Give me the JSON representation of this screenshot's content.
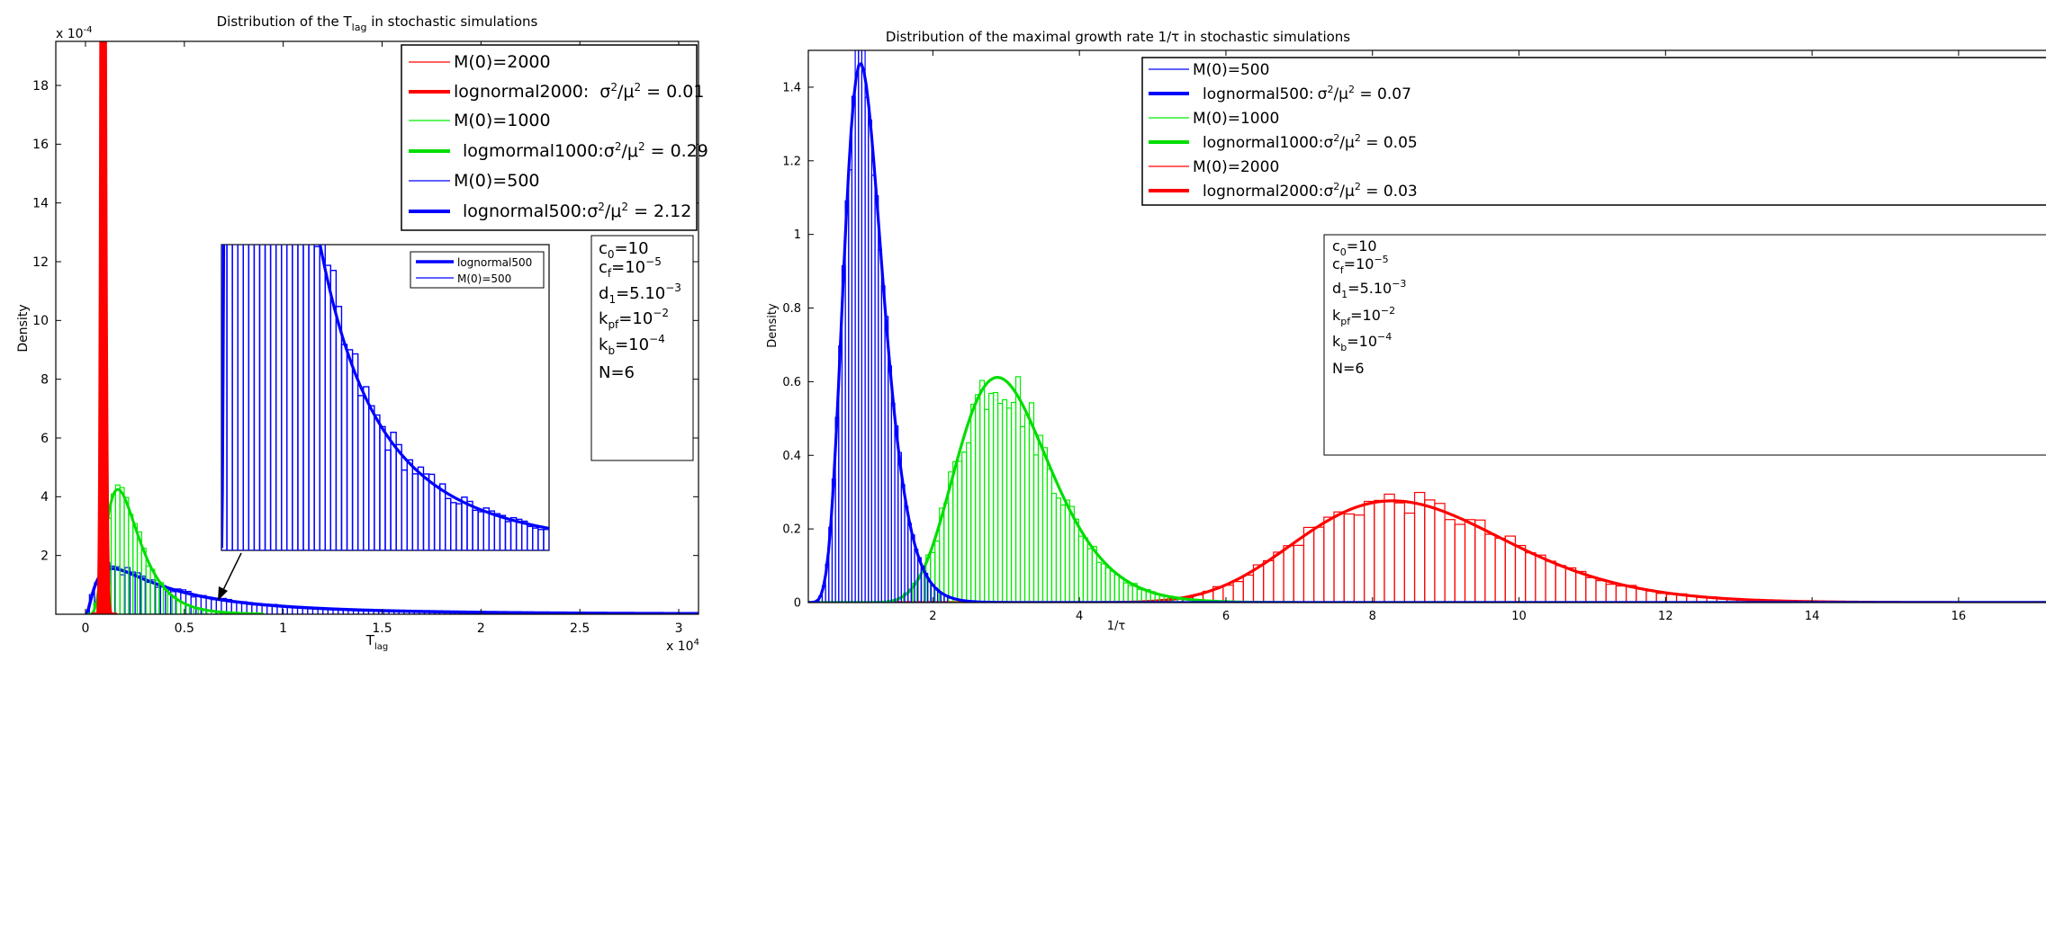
{
  "chart_data": [
    {
      "type": "histogram",
      "title": "Distribution of the T",
      "title_sub": "lag",
      "title_suffix": " in stochastic simulations",
      "xlabel": "T",
      "xlabel_sub": "lag",
      "ylabel": "Density",
      "x_multiplier": "x 10",
      "x_multiplier_exp": "4",
      "y_multiplier": "x 10",
      "y_multiplier_exp": "-4",
      "xlim": [
        -0.15,
        3.1
      ],
      "ylim": [
        0,
        19.5
      ],
      "xticks": [
        0,
        0.5,
        1,
        1.5,
        2,
        2.5,
        3
      ],
      "xtick_labels": [
        "0",
        "0.5",
        "1",
        "1.5",
        "2",
        "2.5",
        "3"
      ],
      "yticks": [
        2,
        4,
        6,
        8,
        10,
        12,
        14,
        16,
        18
      ],
      "ytick_labels": [
        "2",
        "4",
        "6",
        "8",
        "10",
        "12",
        "14",
        "16",
        "18"
      ],
      "grid": false,
      "series": [
        {
          "name": "M(0)=2000",
          "kind": "hist",
          "color": "#ff0000",
          "dist": "lognormal",
          "mean": 0.09,
          "cv2": 0.01
        },
        {
          "name": "lognormal2000:",
          "kind": "fit",
          "color": "#ff0000",
          "dist": "lognormal",
          "mean": 0.09,
          "cv2": 0.01
        },
        {
          "name": "M(0)=1000",
          "kind": "hist",
          "color": "#00ee00",
          "dist": "lognormal",
          "mean": 0.24,
          "cv2": 0.29
        },
        {
          "name": "logmormal1000:",
          "kind": "fit",
          "color": "#00dd00",
          "dist": "lognormal",
          "mean": 0.24,
          "cv2": 0.29
        },
        {
          "name": "M(0)=500",
          "kind": "hist",
          "color": "#0000ff",
          "dist": "lognormal",
          "mean": 0.75,
          "cv2": 2.12
        },
        {
          "name": "lognormal500:",
          "kind": "fit",
          "color": "#0000ff",
          "dist": "lognormal",
          "mean": 0.75,
          "cv2": 2.12
        }
      ],
      "legend": {
        "position": "top-right",
        "entries": [
          {
            "label": "M(0)=2000",
            "color": "#ff0000",
            "weight": "thin"
          },
          {
            "label": "lognormal2000:",
            "stat": "σ²/μ² = 0.01",
            "color": "#ff0000",
            "weight": "thick"
          },
          {
            "label": "M(0)=1000",
            "color": "#00ee00",
            "weight": "thin"
          },
          {
            "label": "logmormal1000:",
            "stat": "σ²/μ² = 0.29",
            "color": "#00dd00",
            "weight": "thick"
          },
          {
            "label": "M(0)=500",
            "color": "#0000ff",
            "weight": "thin"
          },
          {
            "label": "lognormal500:",
            "stat": "σ²/μ² = 2.12",
            "color": "#0000ff",
            "weight": "thick"
          }
        ]
      },
      "inset": {
        "legend": [
          {
            "label": "lognormal500",
            "color": "#0000ff",
            "weight": "thick"
          },
          {
            "label": "M(0)=500",
            "color": "#0000ff",
            "weight": "thin"
          }
        ]
      },
      "params": [
        "c₀=10",
        "c_f=10⁻⁵",
        "d₁=5.10⁻³",
        "k_pf=10⁻²",
        "k_b=10⁻⁴",
        "N=6"
      ]
    },
    {
      "type": "histogram",
      "title": "Distribution of the maximal growth rate 1/τ in stochastic simulations",
      "xlabel": "1/τ",
      "ylabel": "Density",
      "xlim": [
        0.3,
        17.5
      ],
      "ylim": [
        0,
        1.5
      ],
      "xticks": [
        2,
        4,
        6,
        8,
        10,
        12,
        14,
        16
      ],
      "xtick_labels": [
        "2",
        "4",
        "6",
        "8",
        "10",
        "12",
        "14",
        "16"
      ],
      "yticks": [
        0,
        0.2,
        0.4,
        0.6,
        0.8,
        1,
        1.2,
        1.4
      ],
      "ytick_labels": [
        "0",
        "0.2",
        "0.4",
        "0.6",
        "0.8",
        "1",
        "1.2",
        "1.4"
      ],
      "grid": false,
      "series": [
        {
          "name": "M(0)=500",
          "kind": "hist",
          "color": "#0000ff",
          "dist": "lognormal",
          "mean": 1.12,
          "cv2": 0.07
        },
        {
          "name": "lognormal500:",
          "kind": "fit",
          "color": "#0000ff",
          "dist": "lognormal",
          "mean": 1.12,
          "cv2": 0.07
        },
        {
          "name": "M(0)=1000",
          "kind": "hist",
          "color": "#00ee00",
          "dist": "lognormal",
          "mean": 3.1,
          "cv2": 0.05
        },
        {
          "name": "lognormal1000:",
          "kind": "fit",
          "color": "#00dd00",
          "dist": "lognormal",
          "mean": 3.1,
          "cv2": 0.05
        },
        {
          "name": "M(0)=2000",
          "kind": "hist",
          "color": "#ff0000",
          "dist": "lognormal",
          "mean": 8.65,
          "cv2": 0.03
        },
        {
          "name": "lognormal2000:",
          "kind": "fit",
          "color": "#ff0000",
          "dist": "lognormal",
          "mean": 8.65,
          "cv2": 0.03
        }
      ],
      "legend": {
        "position": "top-right",
        "entries": [
          {
            "label": "M(0)=500",
            "color": "#0000ff",
            "weight": "thin"
          },
          {
            "label": "lognormal500:",
            "stat": "σ²/μ² = 0.07",
            "color": "#0000ff",
            "weight": "thick"
          },
          {
            "label": "M(0)=1000",
            "color": "#00ee00",
            "weight": "thin"
          },
          {
            "label": "lognormal1000:",
            "stat": "σ²/μ² = 0.05",
            "color": "#00dd00",
            "weight": "thick"
          },
          {
            "label": "M(0)=2000",
            "color": "#ff0000",
            "weight": "thin"
          },
          {
            "label": "lognormal2000:",
            "stat": "σ²/μ² = 0.03",
            "color": "#ff0000",
            "weight": "thick"
          }
        ]
      },
      "params": [
        "c₀=10",
        "c_f=10⁻⁵",
        "d₁=5.10⁻³",
        "k_pf=10⁻²",
        "k_b=10⁻⁴",
        "N=6"
      ]
    }
  ]
}
